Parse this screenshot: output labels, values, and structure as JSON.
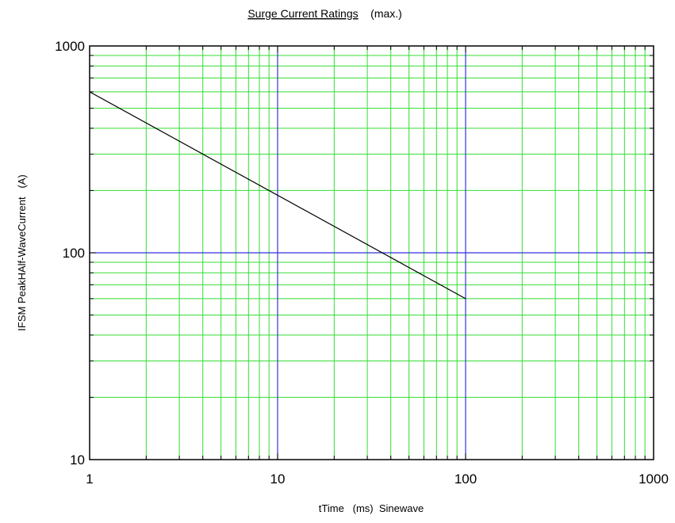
{
  "chart_data": {
    "type": "line",
    "title": "Surge Current Ratings",
    "subtitle": "(max.)",
    "xlabel": "tTime   (ms)  Sinewave",
    "ylabel": "IFSM PeakHAlf-WaveCurrent   (A)",
    "x_scale": "log",
    "y_scale": "log",
    "xlim": [
      1,
      1000
    ],
    "ylim": [
      10,
      1000
    ],
    "x_tick_labels": [
      "1",
      "10",
      "100",
      "1000"
    ],
    "y_tick_labels": [
      "10",
      "100",
      "1000"
    ],
    "grid": true,
    "series": [
      {
        "x": [
          1,
          100
        ],
        "y": [
          600,
          60
        ]
      }
    ]
  },
  "colors": {
    "major_grid": "#3333dd",
    "minor_grid": "#33dd33",
    "series_line": "#000000",
    "frame": "#000000"
  }
}
